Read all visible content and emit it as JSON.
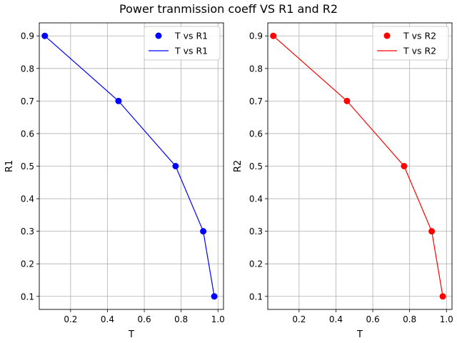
{
  "figure": {
    "suptitle": "Power tranmission coeff VS R1 and R2"
  },
  "chart_data": [
    {
      "type": "scatter+line",
      "title": "",
      "xlabel": "T",
      "ylabel": "R1",
      "xlim": [
        0.03,
        1.03
      ],
      "ylim": [
        0.06,
        0.94
      ],
      "xticks": [
        0.2,
        0.4,
        0.6,
        0.8,
        1.0
      ],
      "xtick_labels": [
        "0.2",
        "0.4",
        "0.6",
        "0.8",
        "1.0"
      ],
      "yticks": [
        0.1,
        0.2,
        0.3,
        0.4,
        0.5,
        0.6,
        0.7,
        0.8,
        0.9
      ],
      "ytick_labels": [
        "0.1",
        "0.2",
        "0.3",
        "0.4",
        "0.5",
        "0.6",
        "0.7",
        "0.8",
        "0.9"
      ],
      "grid": true,
      "legend_position": "top-right",
      "color": "#0000ff",
      "series": [
        {
          "name": "T vs R1",
          "kind": "scatter",
          "x": [
            0.06,
            0.46,
            0.77,
            0.92,
            0.98
          ],
          "y": [
            0.9,
            0.7,
            0.5,
            0.3,
            0.1
          ]
        },
        {
          "name": "T vs R1",
          "kind": "line",
          "x": [
            0.06,
            0.46,
            0.77,
            0.92,
            0.98
          ],
          "y": [
            0.9,
            0.7,
            0.5,
            0.3,
            0.1
          ]
        }
      ]
    },
    {
      "type": "scatter+line",
      "title": "",
      "xlabel": "T",
      "ylabel": "R2",
      "xlim": [
        0.03,
        1.03
      ],
      "ylim": [
        0.06,
        0.94
      ],
      "xticks": [
        0.2,
        0.4,
        0.6,
        0.8,
        1.0
      ],
      "xtick_labels": [
        "0.2",
        "0.4",
        "0.6",
        "0.8",
        "1.0"
      ],
      "yticks": [
        0.1,
        0.2,
        0.3,
        0.4,
        0.5,
        0.6,
        0.7,
        0.8,
        0.9
      ],
      "ytick_labels": [
        "0.1",
        "0.2",
        "0.3",
        "0.4",
        "0.5",
        "0.6",
        "0.7",
        "0.8",
        "0.9"
      ],
      "grid": true,
      "legend_position": "top-right",
      "color": "#ff0000",
      "series": [
        {
          "name": "T vs R2",
          "kind": "scatter",
          "x": [
            0.06,
            0.46,
            0.77,
            0.92,
            0.98
          ],
          "y": [
            0.9,
            0.7,
            0.5,
            0.3,
            0.1
          ]
        },
        {
          "name": "T vs R2",
          "kind": "line",
          "x": [
            0.06,
            0.46,
            0.77,
            0.92,
            0.98
          ],
          "y": [
            0.9,
            0.7,
            0.5,
            0.3,
            0.1
          ]
        }
      ]
    }
  ]
}
